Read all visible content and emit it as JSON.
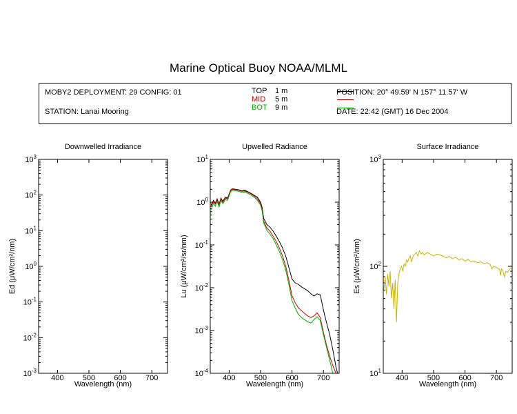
{
  "header": {
    "title": "Marine Optical Buoy NOAA/MLML",
    "deployment": "MOBY2 DEPLOYMENT: 29 CONFIG: 01",
    "station": "STATION: Lanai Mooring",
    "position": "POSITION: 20° 49.59' N   157° 11.57' W",
    "date": "DATE: 22:42 (GMT) 16 Dec 2004"
  },
  "legend": [
    {
      "name": "TOP",
      "depth": "1  m",
      "color": "#000000"
    },
    {
      "name": "MID",
      "depth": "5  m",
      "color": "#cc0000"
    },
    {
      "name": "BOT",
      "depth": "9  m",
      "color": "#00aa00"
    }
  ],
  "chart_data": [
    {
      "type": "line",
      "title": "Downwelled Irradiance",
      "xlabel": "Wavelength (nm)",
      "ylabel": "Ed  (μW/cm²/nm)",
      "xlim": [
        340,
        750
      ],
      "ylim": [
        0.001,
        1000
      ],
      "yscale": "log",
      "xticks": [
        400,
        500,
        600,
        700
      ],
      "yticks": [
        {
          "value": 0.001,
          "label": "10",
          "exp": "-3"
        },
        {
          "value": 0.01,
          "label": "10",
          "exp": "-2"
        },
        {
          "value": 0.1,
          "label": "10",
          "exp": "-1"
        },
        {
          "value": 1,
          "label": "10",
          "exp": "0"
        },
        {
          "value": 10,
          "label": "10",
          "exp": "1"
        },
        {
          "value": 100,
          "label": "10",
          "exp": "2"
        },
        {
          "value": 1000,
          "label": "10",
          "exp": "3"
        }
      ],
      "series": []
    },
    {
      "type": "line",
      "title": "Upwelled Radiance",
      "xlabel": "Wavelength (nm)",
      "ylabel": "Lu  (μW/cm²/sr/nm)",
      "xlim": [
        340,
        750
      ],
      "ylim": [
        0.0001,
        10
      ],
      "yscale": "log",
      "xticks": [
        400,
        500,
        600,
        700
      ],
      "yticks": [
        {
          "value": 0.0001,
          "label": "10",
          "exp": "-4"
        },
        {
          "value": 0.001,
          "label": "10",
          "exp": "-3"
        },
        {
          "value": 0.01,
          "label": "10",
          "exp": "-2"
        },
        {
          "value": 0.1,
          "label": "10",
          "exp": "-1"
        },
        {
          "value": 1,
          "label": "10",
          "exp": "0"
        },
        {
          "value": 10,
          "label": "10",
          "exp": "1"
        }
      ],
      "series": [
        {
          "name": "TOP",
          "color": "#000000",
          "x": [
            343,
            350,
            356,
            362,
            368,
            374,
            380,
            388,
            395,
            400,
            405,
            410,
            420,
            430,
            440,
            450,
            460,
            470,
            480,
            490,
            500,
            505,
            510,
            520,
            530,
            540,
            550,
            560,
            570,
            580,
            590,
            600,
            610,
            620,
            630,
            640,
            650,
            660,
            670,
            680,
            690,
            700,
            710,
            720,
            730,
            740,
            745
          ],
          "y": [
            0.85,
            1.1,
            0.95,
            1.2,
            0.9,
            1.25,
            1.05,
            1.3,
            1.25,
            1.55,
            1.9,
            2.05,
            2.0,
            1.95,
            1.85,
            1.9,
            1.75,
            1.6,
            1.45,
            1.3,
            1.0,
            0.75,
            0.42,
            0.3,
            0.26,
            0.21,
            0.16,
            0.12,
            0.085,
            0.055,
            0.03,
            0.016,
            0.013,
            0.012,
            0.0105,
            0.0095,
            0.0085,
            0.0072,
            0.0064,
            0.0072,
            0.0068,
            0.003,
            0.0015,
            0.0008,
            0.00035,
            0.00014,
            0.0001
          ]
        },
        {
          "name": "MID",
          "color": "#cc0000",
          "x": [
            343,
            350,
            356,
            362,
            368,
            374,
            380,
            388,
            395,
            400,
            405,
            410,
            420,
            430,
            440,
            450,
            460,
            470,
            480,
            490,
            500,
            505,
            510,
            520,
            530,
            540,
            550,
            560,
            570,
            580,
            590,
            600,
            610,
            620,
            630,
            640,
            650,
            660,
            670,
            680,
            690,
            700,
            710,
            720,
            730,
            740
          ],
          "y": [
            0.8,
            1.05,
            0.9,
            1.15,
            0.85,
            1.2,
            1.0,
            1.25,
            1.2,
            1.5,
            1.85,
            2.0,
            1.95,
            1.9,
            1.8,
            1.82,
            1.7,
            1.55,
            1.38,
            1.2,
            0.92,
            0.68,
            0.36,
            0.25,
            0.21,
            0.16,
            0.12,
            0.085,
            0.055,
            0.032,
            0.015,
            0.0065,
            0.0045,
            0.0034,
            0.0029,
            0.0025,
            0.0022,
            0.002,
            0.0022,
            0.0026,
            0.002,
            0.0009,
            0.00045,
            0.00025,
            0.00015,
            0.0001
          ]
        },
        {
          "name": "BOT",
          "color": "#00aa00",
          "x": [
            343,
            350,
            356,
            362,
            368,
            374,
            380,
            388,
            395,
            400,
            405,
            410,
            420,
            430,
            440,
            450,
            460,
            470,
            480,
            490,
            500,
            505,
            510,
            520,
            530,
            540,
            550,
            560,
            570,
            580,
            590,
            600,
            610,
            620,
            630,
            640,
            650,
            660,
            670,
            680,
            690,
            700,
            710,
            720,
            730
          ],
          "y": [
            0.65,
            0.95,
            0.8,
            1.05,
            0.78,
            1.1,
            0.92,
            1.15,
            1.1,
            1.4,
            1.75,
            1.9,
            1.85,
            1.8,
            1.7,
            1.72,
            1.6,
            1.45,
            1.3,
            1.1,
            0.85,
            0.62,
            0.33,
            0.22,
            0.18,
            0.14,
            0.1,
            0.07,
            0.045,
            0.026,
            0.012,
            0.005,
            0.0034,
            0.0024,
            0.002,
            0.0018,
            0.0016,
            0.0015,
            0.0018,
            0.0021,
            0.0017,
            0.0008,
            0.0004,
            0.0002,
            0.0001
          ]
        }
      ]
    },
    {
      "type": "line",
      "title": "Surface Irradiance",
      "xlabel": "Wavelength (nm)",
      "ylabel": "Es  (μW/cm²/nm)",
      "xlim": [
        340,
        750
      ],
      "ylim": [
        10,
        1000
      ],
      "yscale": "log",
      "xticks": [
        400,
        500,
        600,
        700
      ],
      "yticks": [
        {
          "value": 10,
          "label": "10",
          "exp": "1"
        },
        {
          "value": 100,
          "label": "10",
          "exp": "2"
        },
        {
          "value": 1000,
          "label": "10",
          "exp": "3"
        }
      ],
      "series": [
        {
          "name": "",
          "color": "#c8b400",
          "x": [
            342,
            346,
            350,
            354,
            358,
            362,
            366,
            370,
            374,
            378,
            382,
            386,
            390,
            394,
            398,
            402,
            406,
            410,
            414,
            418,
            422,
            426,
            430,
            435,
            440,
            445,
            450,
            455,
            460,
            465,
            470,
            480,
            490,
            500,
            510,
            520,
            530,
            540,
            550,
            560,
            570,
            580,
            590,
            600,
            610,
            620,
            630,
            640,
            650,
            660,
            670,
            680,
            685,
            690,
            700,
            710,
            713,
            716,
            720,
            725,
            730,
            735,
            740,
            745,
            750
          ],
          "y": [
            60,
            80,
            55,
            85,
            65,
            90,
            50,
            70,
            40,
            75,
            30,
            70,
            85,
            95,
            100,
            90,
            105,
            100,
            115,
            110,
            120,
            125,
            110,
            125,
            130,
            135,
            125,
            140,
            130,
            135,
            128,
            135,
            130,
            125,
            130,
            128,
            125,
            120,
            124,
            118,
            122,
            115,
            118,
            112,
            116,
            110,
            112,
            108,
            110,
            106,
            108,
            104,
            95,
            100,
            98,
            94,
            82,
            95,
            92,
            80,
            90,
            88,
            92,
            96,
            96
          ]
        }
      ]
    }
  ]
}
